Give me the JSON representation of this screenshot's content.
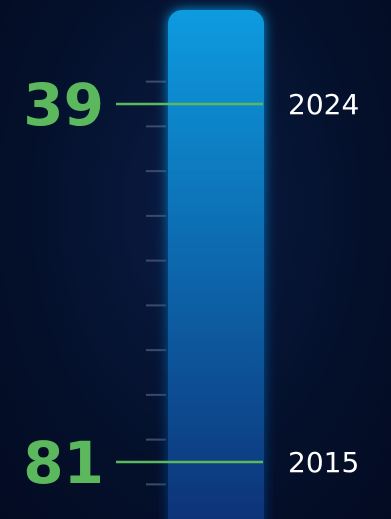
{
  "colors": {
    "background": "#04102b",
    "accent": "#5cb85c",
    "bar_top": "#0a9be0",
    "bar_bottom": "#0e2f74",
    "tick": "#3b4a6b",
    "year_text": "#ffffff"
  },
  "chart_data": {
    "type": "bar",
    "orientation": "vertical-thermometer",
    "title": "",
    "xlabel": "",
    "ylabel": "",
    "grid": false,
    "legend": "none",
    "ylim": [
      90,
      30
    ],
    "tick_count": 9,
    "markers": [
      {
        "label": "2024",
        "value": 39,
        "value_text": "39"
      },
      {
        "label": "2015",
        "value": 81,
        "value_text": "81"
      }
    ]
  }
}
